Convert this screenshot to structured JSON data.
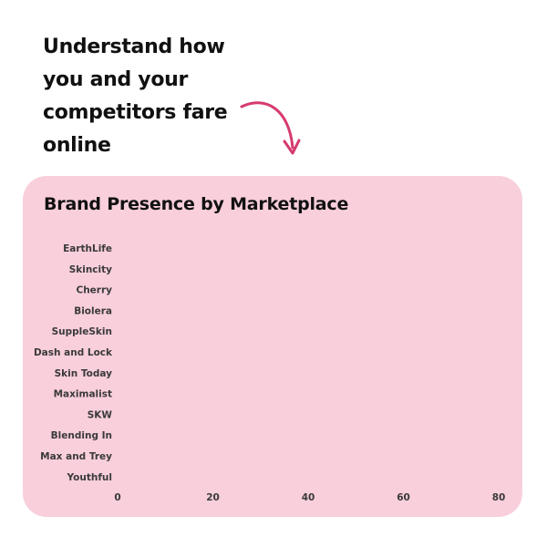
{
  "headline": {
    "lines": [
      "Understand how",
      "you and your",
      "competitors fare",
      "online"
    ],
    "arrow_icon": "curved-arrow-down-icon",
    "arrow_color": "#d63a6e"
  },
  "card": {
    "background": "#f9cfdc"
  },
  "chart_data": {
    "type": "bar",
    "orientation": "horizontal",
    "title": "Brand Presence by Marketplace",
    "categories": [
      "EarthLife",
      "Skincity",
      "Cherry",
      "Biolera",
      "SuppleSkin",
      "Dash and Lock",
      "Skin Today",
      "Maximalist",
      "SKW",
      "Blending In",
      "Max and Trey",
      "Youthful"
    ],
    "values": [
      0,
      0,
      0,
      0,
      0,
      0,
      0,
      0,
      0,
      0,
      0,
      0
    ],
    "xlim": [
      0,
      80
    ],
    "xticks": [
      "0",
      "20",
      "40",
      "60",
      "80"
    ],
    "xlabel": "",
    "ylabel": "",
    "grid": false,
    "bar_color": "#d63a6e"
  }
}
